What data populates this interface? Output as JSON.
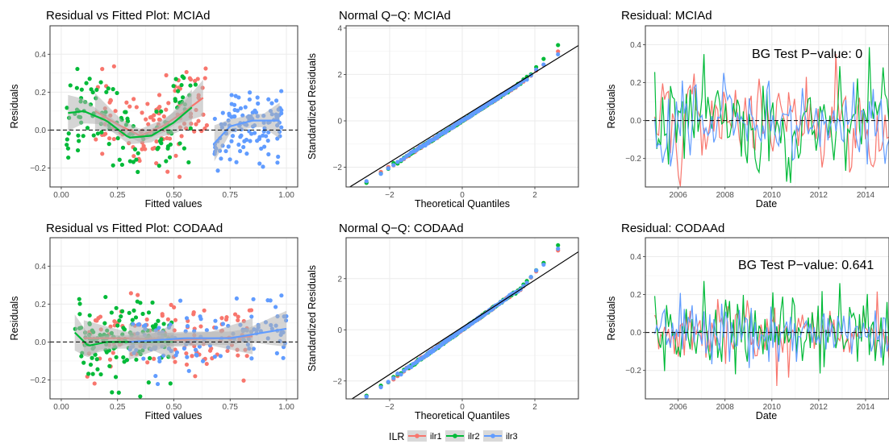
{
  "colors": {
    "ilr1": "#F8766D",
    "ilr2": "#00BA38",
    "ilr3": "#619CFF",
    "band": "#b3b3b3",
    "grid": "#ebebeb"
  },
  "legend": {
    "title": "ILR",
    "items": [
      "ilr1",
      "ilr2",
      "ilr3"
    ],
    "placement": "bottom"
  },
  "chart_data": [
    {
      "type": "scatter",
      "title": "Residual vs Fitted Plot: MCIAd",
      "xlabel": "Fitted values",
      "ylabel": "Residuals",
      "xlim": [
        -0.05,
        1.05
      ],
      "ylim": [
        -0.3,
        0.55
      ],
      "xticks": [
        0,
        0.25,
        0.5,
        0.75,
        1.0
      ],
      "xtick_labels": [
        "0.00",
        "0.25",
        "0.50",
        "0.75",
        "1.00"
      ],
      "yticks": [
        -0.2,
        0.0,
        0.2,
        0.4
      ],
      "ytick_labels": [
        "−0.2",
        "0.0",
        "0.2",
        "0.4"
      ],
      "hline": 0,
      "grid": true,
      "smooth": "loess with gray confidence band",
      "series": [
        {
          "name": "ilr1",
          "x_range": [
            0.15,
            0.65
          ],
          "n": 120,
          "seed": 11,
          "sd": 0.11,
          "smooth": [
            [
              0.15,
              0.1
            ],
            [
              0.25,
              0.03
            ],
            [
              0.35,
              -0.03
            ],
            [
              0.45,
              0.02
            ],
            [
              0.55,
              0.1
            ],
            [
              0.63,
              0.17
            ]
          ]
        },
        {
          "name": "ilr2",
          "x_range": [
            0.02,
            0.6
          ],
          "n": 120,
          "seed": 23,
          "sd": 0.13,
          "smooth": [
            [
              0.03,
              0.09
            ],
            [
              0.1,
              0.1
            ],
            [
              0.2,
              0.05
            ],
            [
              0.3,
              -0.04
            ],
            [
              0.4,
              -0.03
            ],
            [
              0.5,
              0.04
            ],
            [
              0.58,
              0.12
            ]
          ]
        },
        {
          "name": "ilr3",
          "x_range": [
            0.68,
            0.98
          ],
          "n": 120,
          "seed": 37,
          "sd": 0.09,
          "smooth": [
            [
              0.68,
              -0.07
            ],
            [
              0.75,
              0.02
            ],
            [
              0.85,
              0.05
            ],
            [
              0.97,
              0.05
            ]
          ]
        }
      ]
    },
    {
      "type": "scatter",
      "title": "Normal Q−Q: MCIAd",
      "xlabel": "Theoretical Quantiles",
      "ylabel": "Standardized Residuals",
      "xlim": [
        -3.2,
        3.2
      ],
      "ylim": [
        -2.85,
        4.1
      ],
      "xticks": [
        -2,
        0,
        2
      ],
      "xtick_labels": [
        "−2",
        "0",
        "2"
      ],
      "yticks": [
        -2,
        0,
        2,
        4
      ],
      "ytick_labels": [
        "−2",
        "0",
        "2",
        "4"
      ],
      "refline": [
        [
          -3.2,
          -2.95
        ],
        [
          3.2,
          3.25
        ]
      ],
      "grid": true,
      "series": [
        {
          "name": "ilr1",
          "n": 120,
          "seed": 5,
          "tail_hi": 0.3
        },
        {
          "name": "ilr2",
          "n": 120,
          "seed": 6,
          "tail_hi": 0.6
        },
        {
          "name": "ilr3",
          "n": 120,
          "seed": 7,
          "tail_hi": 0.25
        }
      ]
    },
    {
      "type": "line",
      "title": "Residual: MCIAd",
      "xlabel": "Date",
      "ylabel": "Residuals",
      "xlim": [
        2004.6,
        2015.0
      ],
      "ylim": [
        -0.35,
        0.5
      ],
      "xticks": [
        2006,
        2008,
        2010,
        2012,
        2014
      ],
      "xtick_labels": [
        "2006",
        "2008",
        "2010",
        "2012",
        "2014"
      ],
      "yticks": [
        -0.2,
        0.0,
        0.2,
        0.4
      ],
      "ytick_labels": [
        "−0.2",
        "0.0",
        "0.2",
        "0.4"
      ],
      "hline": 0,
      "grid": true,
      "annotation": "BG Test P−value: 0",
      "series": [
        {
          "name": "ilr1",
          "start": 2005.0,
          "end": 2015.0,
          "n": 120,
          "seed": 101,
          "sd": 0.11,
          "ar": 0.35
        },
        {
          "name": "ilr2",
          "start": 2005.0,
          "end": 2015.0,
          "n": 120,
          "seed": 202,
          "sd": 0.13,
          "ar": 0.3
        },
        {
          "name": "ilr3",
          "start": 2005.0,
          "end": 2015.0,
          "n": 120,
          "seed": 303,
          "sd": 0.1,
          "ar": 0.3
        }
      ]
    },
    {
      "type": "scatter",
      "title": "Residual vs Fitted Plot: CODAAd",
      "xlabel": "Fitted values",
      "ylabel": "Residuals",
      "xlim": [
        -0.05,
        1.05
      ],
      "ylim": [
        -0.3,
        0.55
      ],
      "xticks": [
        0,
        0.25,
        0.5,
        0.75,
        1.0
      ],
      "xtick_labels": [
        "0.00",
        "0.25",
        "0.50",
        "0.75",
        "1.00"
      ],
      "yticks": [
        -0.2,
        0.0,
        0.2,
        0.4
      ],
      "ytick_labels": [
        "−0.2",
        "0.0",
        "0.2",
        "0.4"
      ],
      "hline": 0,
      "grid": true,
      "smooth": "loess with gray confidence band",
      "series": [
        {
          "name": "ilr1",
          "x_range": [
            0.1,
            0.85
          ],
          "n": 120,
          "seed": 41,
          "sd": 0.09,
          "smooth": [
            [
              0.1,
              0.02
            ],
            [
              0.3,
              0.02
            ],
            [
              0.5,
              0.01
            ],
            [
              0.7,
              0.02
            ],
            [
              0.85,
              0.03
            ]
          ]
        },
        {
          "name": "ilr2",
          "x_range": [
            0.06,
            0.5
          ],
          "n": 120,
          "seed": 53,
          "sd": 0.1,
          "smooth": [
            [
              0.06,
              0.05
            ],
            [
              0.12,
              -0.02
            ],
            [
              0.2,
              0.0
            ],
            [
              0.35,
              0.0
            ],
            [
              0.5,
              0.0
            ]
          ]
        },
        {
          "name": "ilr3",
          "x_range": [
            0.3,
            1.0
          ],
          "n": 120,
          "seed": 67,
          "sd": 0.08,
          "smooth": [
            [
              0.3,
              0.0
            ],
            [
              0.55,
              0.02
            ],
            [
              0.75,
              0.02
            ],
            [
              0.9,
              0.05
            ],
            [
              1.0,
              0.07
            ]
          ]
        }
      ]
    },
    {
      "type": "scatter",
      "title": "Normal Q−Q: CODAAd",
      "xlabel": "Theoretical Quantiles",
      "ylabel": "Standardized Residuals",
      "xlim": [
        -3.2,
        3.2
      ],
      "ylim": [
        -2.7,
        3.6
      ],
      "xticks": [
        -2,
        0,
        2
      ],
      "xtick_labels": [
        "−2",
        "0",
        "2"
      ],
      "yticks": [
        -2,
        0,
        2
      ],
      "ytick_labels": [
        "−2",
        "0",
        "2"
      ],
      "refline": [
        [
          -3.2,
          -2.85
        ],
        [
          3.2,
          3.05
        ]
      ],
      "grid": true,
      "series": [
        {
          "name": "ilr1",
          "n": 120,
          "seed": 8,
          "tail_hi": 0.5
        },
        {
          "name": "ilr2",
          "n": 120,
          "seed": 9,
          "tail_hi": 0.6
        },
        {
          "name": "ilr3",
          "n": 120,
          "seed": 10,
          "tail_hi": 0.55
        }
      ]
    },
    {
      "type": "line",
      "title": "Residual: CODAAd",
      "xlabel": "Date",
      "ylabel": "Residuals",
      "xlim": [
        2004.6,
        2015.0
      ],
      "ylim": [
        -0.35,
        0.5
      ],
      "xticks": [
        2006,
        2008,
        2010,
        2012,
        2014
      ],
      "xtick_labels": [
        "2006",
        "2008",
        "2010",
        "2012",
        "2014"
      ],
      "yticks": [
        -0.2,
        0.0,
        0.2,
        0.4
      ],
      "ytick_labels": [
        "−0.2",
        "0.0",
        "0.2",
        "0.4"
      ],
      "hline": 0,
      "grid": true,
      "annotation": "BG Test P−value: 0.641",
      "series": [
        {
          "name": "ilr1",
          "start": 2005.0,
          "end": 2015.0,
          "n": 120,
          "seed": 404,
          "sd": 0.08,
          "ar": -0.3
        },
        {
          "name": "ilr2",
          "start": 2005.0,
          "end": 2015.0,
          "n": 120,
          "seed": 505,
          "sd": 0.11,
          "ar": -0.35
        },
        {
          "name": "ilr3",
          "start": 2005.0,
          "end": 2015.0,
          "n": 120,
          "seed": 606,
          "sd": 0.08,
          "ar": -0.3
        }
      ]
    }
  ]
}
